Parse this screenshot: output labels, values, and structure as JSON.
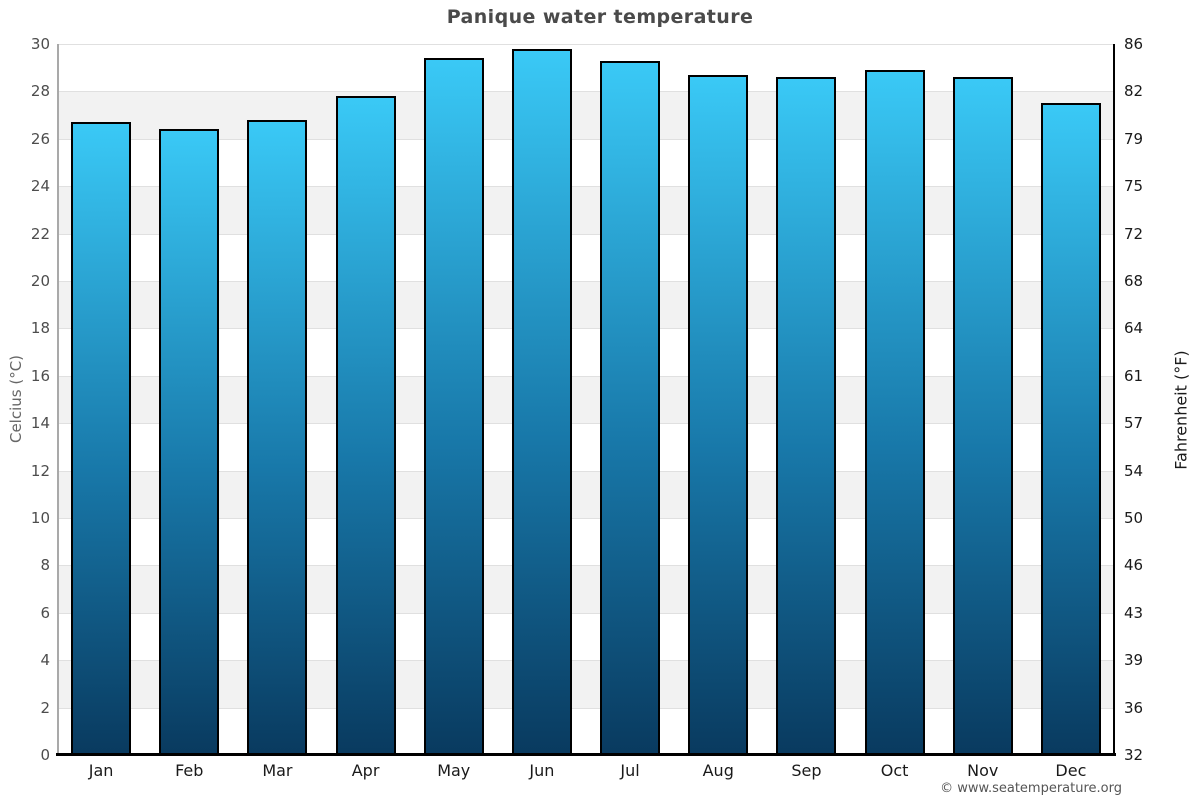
{
  "page": {
    "title": "Panique water temperature",
    "credit": "© www.seatemperature.org"
  },
  "axes": {
    "left_title": "Celcius (°C)",
    "right_title": "Fahrenheit (°F)"
  },
  "colors": {
    "bar_top": "#3ac9f6",
    "bar_mid": "#1878a9",
    "bar_bottom": "#093a5f",
    "bar_border": "#000000",
    "band_gray": "#f2f2f2",
    "band_white": "#ffffff",
    "gridline": "#e0e0e0",
    "left_spine": "#a9a9a9",
    "right_spine": "#000000",
    "baseline": "#000000",
    "title_text": "#4a4a4a",
    "left_tick_text": "#4d4d4d",
    "right_tick_text": "#1a1a1a",
    "left_axis_title_text": "#666666",
    "right_axis_title_text": "#1a1a1a",
    "month_text": "#1a1a1a",
    "credit_text": "#555555"
  },
  "chart_data": {
    "type": "bar",
    "title": "Panique water temperature",
    "categories": [
      "Jan",
      "Feb",
      "Mar",
      "Apr",
      "May",
      "Jun",
      "Jul",
      "Aug",
      "Sep",
      "Oct",
      "Nov",
      "Dec"
    ],
    "values": [
      26.7,
      26.4,
      26.8,
      27.8,
      29.4,
      29.8,
      29.3,
      28.7,
      28.6,
      28.9,
      28.6,
      27.5
    ],
    "unit": "°C",
    "ylabel": "Celcius (°C)",
    "y2label": "Fahrenheit (°F)",
    "ylim": [
      0,
      30
    ],
    "ytick_step": 2,
    "left_tick_labels": [
      "0",
      "2",
      "4",
      "6",
      "8",
      "10",
      "12",
      "14",
      "16",
      "18",
      "20",
      "22",
      "24",
      "26",
      "28",
      "30"
    ],
    "right_tick_labels": [
      "32",
      "36",
      "39",
      "43",
      "46",
      "50",
      "54",
      "57",
      "61",
      "64",
      "68",
      "72",
      "75",
      "79",
      "82",
      "86"
    ],
    "grid": "horizontal-bands-alternating",
    "legend": "none",
    "bar_gradient": [
      "#3ac9f6",
      "#1878a9",
      "#093a5f"
    ]
  }
}
